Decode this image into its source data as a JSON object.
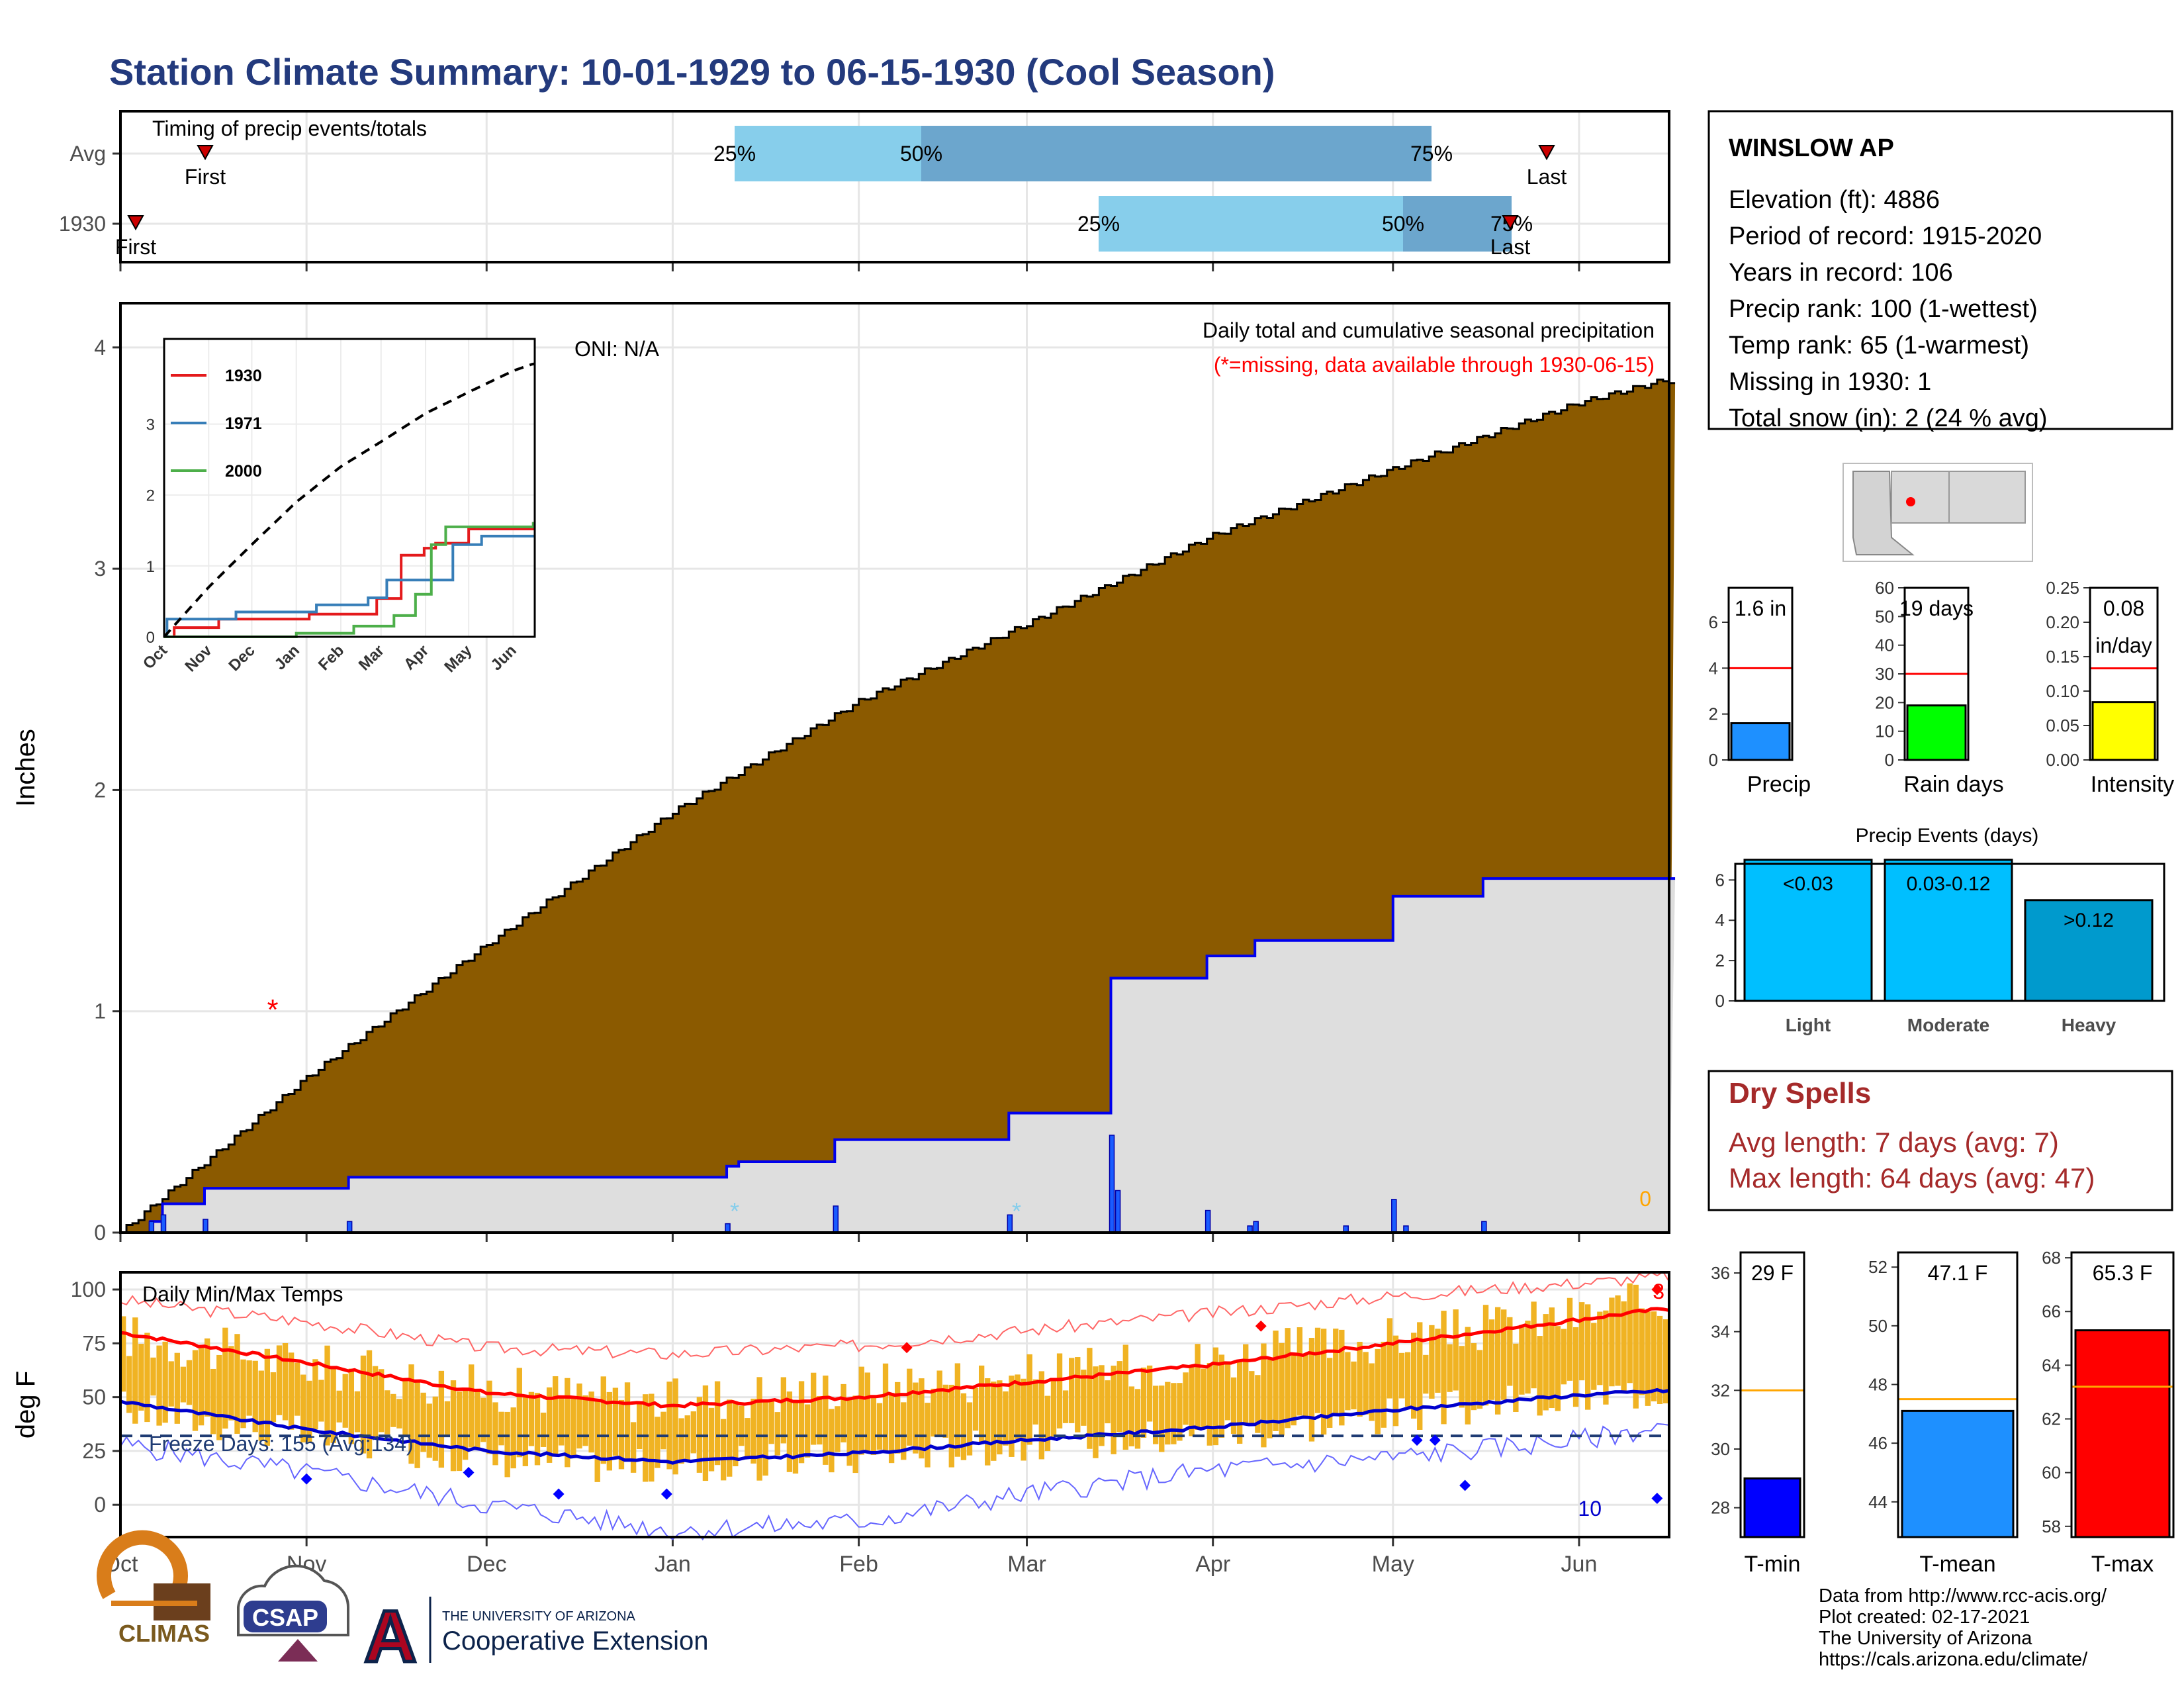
{
  "title": "Station Climate Summary: 10-01-1929 to 06-15-1930 (Cool Season)",
  "colors": {
    "title": "#233a7d",
    "cumulative_fill": "#8b5a00",
    "avg_fill": "#dedede",
    "avg_line": "#0000ee",
    "temp_bar": "#f0b323",
    "timing_light": "#87ceeb",
    "timing_dark": "#6ca6cd",
    "dry_spells": "#a52a2a"
  },
  "timing": {
    "title": "Timing of precip events/totals",
    "rows": [
      {
        "label": "Avg",
        "first_label": "First",
        "last_label": "Last",
        "p25": "25%",
        "p50": "50%",
        "p75": "75%"
      },
      {
        "label": "1930",
        "first_label": "First",
        "last_label": "Last",
        "p25": "25%",
        "p50": "50%",
        "p75": "75%"
      }
    ]
  },
  "precip_panel": {
    "ylabel": "Inches",
    "oni": "ONI: N/A",
    "header": "Daily total and cumulative seasonal precipitation",
    "note": "(*=missing, data available through 1930-06-15)",
    "snow_value": "0",
    "yticks": [
      "0",
      "1",
      "2",
      "3",
      "4"
    ]
  },
  "inset": {
    "legend": [
      "1930",
      "1971",
      "2000"
    ],
    "yticks": [
      "0",
      "1",
      "2",
      "3"
    ],
    "xticks": [
      "Oct",
      "Nov",
      "Dec",
      "Jan",
      "Feb",
      "Mar",
      "Apr",
      "May",
      "Jun"
    ]
  },
  "temp_panel": {
    "ylabel": "deg F",
    "title": "Daily Min/Max Temps",
    "freeze": "Freeze Days: 155 (Avg:134)",
    "low_count": "10",
    "high_count": "3",
    "yticks": [
      "0",
      "25",
      "50",
      "75",
      "100"
    ]
  },
  "months": [
    "Oct",
    "Nov",
    "Dec",
    "Jan",
    "Feb",
    "Mar",
    "Apr",
    "May",
    "Jun"
  ],
  "station": {
    "name": "WINSLOW AP",
    "lines": [
      "Elevation (ft): 4886",
      "Period of record: 1915-2020",
      "Years in record: 106",
      "Precip rank: 100 (1-wettest)",
      "Temp rank: 65 (1-warmest)",
      "Missing in 1930: 1",
      "Total snow (in): 2 (24 % avg)"
    ]
  },
  "precip_bars": [
    {
      "label": "Precip",
      "value_text": "1.6 in",
      "value": 1.6,
      "avg": 4,
      "ymax": 7.5,
      "yticks": [
        "0",
        "2",
        "4",
        "6"
      ],
      "color": "#1e90ff"
    },
    {
      "label": "Rain days",
      "value_text": "19 days",
      "value": 19,
      "avg": 30,
      "ymax": 60,
      "yticks": [
        "0",
        "10",
        "20",
        "30",
        "40",
        "50",
        "60"
      ],
      "color": "#00ff00"
    },
    {
      "label": "Intensity",
      "value_text": "0.08",
      "value_unit": "in/day",
      "value": 0.084,
      "avg": 0.133,
      "ymax": 0.25,
      "yticks": [
        "0.00",
        "0.05",
        "0.10",
        "0.15",
        "0.20",
        "0.25"
      ],
      "color": "#ffff00"
    }
  ],
  "events": {
    "title": "Precip Events (days)",
    "yticks": [
      "0",
      "2",
      "4",
      "6"
    ],
    "bars": [
      {
        "label": "Light",
        "inner": "<0.03",
        "value": 7,
        "color": "#00bfff"
      },
      {
        "label": "Moderate",
        "inner": "0.03-0.12",
        "value": 7,
        "color": "#00bfff"
      },
      {
        "label": "Heavy",
        "inner": ">0.12",
        "value": 5,
        "color": "#009acd"
      }
    ]
  },
  "dry_spells": {
    "title": "Dry Spells",
    "avg": "Avg length: 7 days (avg: 7)",
    "max": "Max length: 64 days (avg: 47)"
  },
  "temp_bars": [
    {
      "label": "T-min",
      "value_text": "29 F",
      "value": 29,
      "avg": 32,
      "ymin": 27,
      "ymax": 36.7,
      "ticks": [
        28,
        30,
        32,
        34,
        36
      ],
      "color": "#0000ff"
    },
    {
      "label": "T-mean",
      "value_text": "47.1 F",
      "value": 47.1,
      "avg": 47.5,
      "ymin": 42.8,
      "ymax": 52.5,
      "ticks": [
        44,
        46,
        48,
        50,
        52
      ],
      "color": "#1e90ff"
    },
    {
      "label": "T-max",
      "value_text": "65.3 F",
      "value": 65.3,
      "avg": 63.2,
      "ymin": 57.6,
      "ymax": 68.2,
      "ticks": [
        58,
        60,
        62,
        64,
        66,
        68
      ],
      "color": "#ff0000"
    }
  ],
  "footer": [
    "Data from http://www.rcc-acis.org/",
    "Plot created: 02-17-2021",
    "The University of Arizona",
    "https://cals.arizona.edu/climate/"
  ],
  "logos": {
    "climas": "CLIMAS",
    "csap": "CSAP",
    "uofa": "A",
    "coop_small": "THE UNIVERSITY OF ARIZONA",
    "coop_big": "Cooperative Extension"
  },
  "chart_data": [
    {
      "type": "area",
      "title": "Daily total and cumulative seasonal precipitation",
      "ylabel": "Inches",
      "ylim": [
        0,
        4.2
      ],
      "x_range": [
        "1929-10-01",
        "1930-06-15"
      ],
      "series": [
        {
          "name": "Avg",
          "x": [
            "1929-10-01",
            "1929-11-01",
            "1929-12-01",
            "1930-01-01",
            "1930-02-01",
            "1930-03-01",
            "1930-04-01",
            "1930-05-01",
            "1930-06-01",
            "1930-06-15"
          ],
          "y": [
            0,
            0.7,
            1.3,
            1.9,
            2.4,
            2.75,
            3.15,
            3.45,
            3.75,
            3.85
          ]
        },
        {
          "name": "1930",
          "x": [
            "1929-10-01",
            "1929-10-06",
            "1929-10-08",
            "1929-10-13",
            "1929-10-15",
            "1929-11-06",
            "1929-11-08",
            "1930-01-10",
            "1930-01-12",
            "1930-01-28",
            "1930-02-26",
            "1930-03-15",
            "1930-03-16",
            "1930-03-31",
            "1930-04-08",
            "1930-05-01",
            "1930-05-16",
            "1930-06-15"
          ],
          "y": [
            0,
            0.05,
            0.13,
            0.13,
            0.2,
            0.2,
            0.25,
            0.3,
            0.32,
            0.42,
            0.54,
            1.15,
            1.15,
            1.25,
            1.32,
            1.52,
            1.6,
            1.6
          ]
        }
      ],
      "daily_bars": {
        "x": [
          "1929-10-06",
          "1929-10-08",
          "1929-10-15",
          "1929-11-08",
          "1930-01-10",
          "1930-01-28",
          "1930-02-26",
          "1930-03-15",
          "1930-03-16",
          "1930-03-31",
          "1930-04-07",
          "1930-04-08",
          "1930-04-23",
          "1930-05-01",
          "1930-05-03",
          "1930-05-16"
        ],
        "y": [
          0.05,
          0.08,
          0.06,
          0.05,
          0.04,
          0.12,
          0.08,
          0.44,
          0.19,
          0.1,
          0.03,
          0.05,
          0.03,
          0.15,
          0.03,
          0.05
        ]
      },
      "inset": {
        "type": "line",
        "ylim": [
          0,
          4.2
        ],
        "series": [
          {
            "name": "1930",
            "x": [
              "1929-10-01",
              "1929-10-08",
              "1929-11-08",
              "1930-01-10",
              "1930-02-26",
              "1930-03-15",
              "1930-03-16",
              "1930-03-31",
              "1930-04-08",
              "1930-05-01",
              "1930-06-15"
            ],
            "y": [
              0,
              0.13,
              0.25,
              0.32,
              0.54,
              1.15,
              1.15,
              1.25,
              1.32,
              1.52,
              1.6
            ]
          },
          {
            "name": "1971",
            "x": [
              "1929-10-01",
              "1929-10-03",
              "1929-11-20",
              "1930-01-15",
              "1930-02-20",
              "1930-03-05",
              "1930-04-01",
              "1930-04-20",
              "1930-05-10",
              "1930-06-15"
            ],
            "y": [
              0,
              0.25,
              0.35,
              0.45,
              0.55,
              0.8,
              0.8,
              1.3,
              1.42,
              1.42
            ]
          },
          {
            "name": "2000",
            "x": [
              "1929-10-01",
              "1930-01-01",
              "1930-02-10",
              "1930-03-10",
              "1930-03-25",
              "1930-04-05",
              "1930-04-15",
              "1930-06-15"
            ],
            "y": [
              0,
              0.05,
              0.15,
              0.3,
              0.6,
              1.3,
              1.55,
              1.6
            ]
          },
          {
            "name": "Avg",
            "x": [
              "1929-10-01",
              "1929-11-01",
              "1929-12-01",
              "1930-01-01",
              "1930-02-01",
              "1930-03-01",
              "1930-04-01",
              "1930-05-01",
              "1930-06-01",
              "1930-06-15"
            ],
            "y": [
              0,
              0.7,
              1.3,
              1.9,
              2.4,
              2.75,
              3.15,
              3.45,
              3.75,
              3.85
            ]
          }
        ]
      }
    },
    {
      "type": "bar",
      "title": "Daily Min/Max Temps",
      "ylabel": "deg F",
      "ylim": [
        -15,
        108
      ],
      "x_range": [
        "1929-10-01",
        "1930-06-15"
      ],
      "series": [
        {
          "name": "Avg max",
          "x": [
            "1929-10-01",
            "1929-11-01",
            "1929-12-01",
            "1930-01-01",
            "1930-02-01",
            "1930-03-01",
            "1930-04-01",
            "1930-05-01",
            "1930-06-01",
            "1930-06-15"
          ],
          "y": [
            80,
            66,
            52,
            46,
            50,
            57,
            65,
            75,
            86,
            91
          ]
        },
        {
          "name": "Avg min",
          "x": [
            "1929-10-01",
            "1929-11-01",
            "1929-12-01",
            "1930-01-01",
            "1930-02-01",
            "1930-03-01",
            "1930-04-01",
            "1930-05-01",
            "1930-06-01",
            "1930-06-15"
          ],
          "y": [
            48,
            35,
            25,
            20,
            24,
            30,
            36,
            44,
            51,
            53
          ]
        },
        {
          "name": "Record high",
          "x": [
            "1929-10-01",
            "1929-11-01",
            "1929-12-01",
            "1930-01-01",
            "1930-02-01",
            "1930-03-01",
            "1930-04-01",
            "1930-05-01",
            "1930-06-01",
            "1930-06-15"
          ],
          "y": [
            95,
            85,
            73,
            70,
            74,
            81,
            89,
            97,
            103,
            106
          ]
        },
        {
          "name": "Record low",
          "x": [
            "1929-10-01",
            "1929-11-01",
            "1929-12-01",
            "1930-01-01",
            "1930-02-01",
            "1930-03-01",
            "1930-04-01",
            "1930-05-01",
            "1930-06-01",
            "1930-06-15"
          ],
          "y": [
            28,
            15,
            0,
            -12,
            -8,
            5,
            16,
            22,
            30,
            36
          ]
        },
        {
          "name": "Daily high",
          "x": [
            "1929-10-01",
            "1929-11-01",
            "1929-12-01",
            "1930-01-01",
            "1930-02-01",
            "1930-03-01",
            "1930-04-01",
            "1930-05-01",
            "1930-06-01",
            "1930-06-15"
          ],
          "y": [
            79,
            65,
            54,
            48,
            56,
            60,
            68,
            77,
            88,
            95
          ]
        },
        {
          "name": "Daily low",
          "x": [
            "1929-10-01",
            "1929-11-01",
            "1929-12-01",
            "1930-01-01",
            "1930-02-01",
            "1930-03-01",
            "1930-04-01",
            "1930-05-01",
            "1930-06-01",
            "1930-06-15"
          ],
          "y": [
            45,
            32,
            22,
            17,
            22,
            29,
            33,
            42,
            50,
            54
          ]
        }
      ],
      "freeze_line": 32
    },
    {
      "type": "bar",
      "categories": [
        "Precip"
      ],
      "values": [
        1.6
      ],
      "avg": 4,
      "ylim": [
        0,
        7.5
      ]
    },
    {
      "type": "bar",
      "categories": [
        "Rain days"
      ],
      "values": [
        19
      ],
      "avg": 30,
      "ylim": [
        0,
        60
      ]
    },
    {
      "type": "bar",
      "categories": [
        "Intensity"
      ],
      "values": [
        0.084
      ],
      "avg": 0.133,
      "ylim": [
        0,
        0.25
      ]
    },
    {
      "type": "bar",
      "title": "Precip Events (days)",
      "categories": [
        "Light",
        "Moderate",
        "Heavy"
      ],
      "values": [
        7,
        7,
        5
      ],
      "ylim": [
        0,
        6.8
      ]
    },
    {
      "type": "bar",
      "categories": [
        "T-min"
      ],
      "values": [
        29
      ],
      "avg": 32,
      "ylim": [
        27,
        36.7
      ]
    },
    {
      "type": "bar",
      "categories": [
        "T-mean"
      ],
      "values": [
        47.1
      ],
      "avg": 47.5,
      "ylim": [
        42.8,
        52.5
      ]
    },
    {
      "type": "bar",
      "categories": [
        "T-max"
      ],
      "values": [
        65.3
      ],
      "avg": 63.2,
      "ylim": [
        57.6,
        68.2
      ]
    }
  ]
}
